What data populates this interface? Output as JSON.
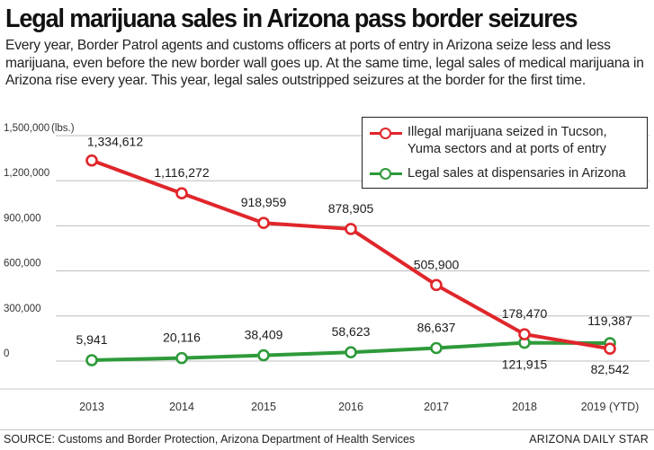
{
  "header": {
    "title": "Legal marijuana sales in Arizona pass border seizures",
    "dek": "Every year, Border Patrol agents and customs officers at ports of entry in Arizona seize less and less marijuana, even before the new border wall goes up. At the same time, legal sales of medical marijuana in Arizona rise every year. This year, legal sales outstripped seizures at the border for the first time."
  },
  "footer": {
    "source": "SOURCE: Customs and Border Protection, Arizona Department of Health Services",
    "credit": "ARIZONA DAILY STAR"
  },
  "colors": {
    "seized": "#e0262b",
    "sales": "#2e9a3a",
    "grid": "#bdbdbd",
    "axis": "#333333"
  },
  "chart_data": {
    "type": "line",
    "title": "Legal marijuana sales in Arizona pass border seizures",
    "xlabel": "",
    "ylabel": "",
    "unit_label": "(lbs.)",
    "categories": [
      "2013",
      "2014",
      "2015",
      "2016",
      "2017",
      "2018",
      "2019 (YTD)"
    ],
    "ylim": [
      0,
      1500000
    ],
    "yticks": [
      0,
      300000,
      600000,
      900000,
      1200000,
      1500000
    ],
    "ytick_labels": [
      "0",
      "300,000",
      "600,000",
      "900,000",
      "1,200,000",
      "1,500,000"
    ],
    "grid": true,
    "legend_position": "top-right",
    "series": [
      {
        "name": "Illegal marijuana seized in Tucson, Yuma sectors and at ports of entry",
        "color_key": "seized",
        "values": [
          1334612,
          1116272,
          918959,
          878905,
          505900,
          178470,
          82542
        ],
        "labels": [
          "1,334,612",
          "1,116,272",
          "918,959",
          "878,905",
          "505,900",
          "178,470",
          "82,542"
        ]
      },
      {
        "name": "Legal sales at dispensaries in Arizona",
        "color_key": "sales",
        "values": [
          5941,
          20116,
          38409,
          58623,
          86637,
          121915,
          119387
        ],
        "labels": [
          "5,941",
          "20,116",
          "38,409",
          "58,623",
          "86,637",
          "121,915",
          "119,387"
        ]
      }
    ]
  }
}
